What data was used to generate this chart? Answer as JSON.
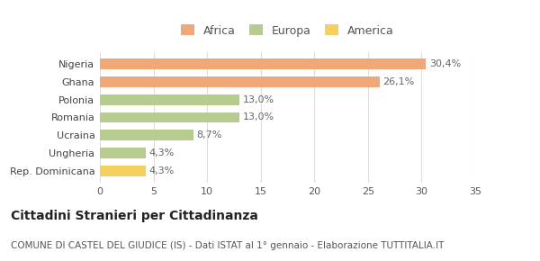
{
  "categories": [
    "Nigeria",
    "Ghana",
    "Polonia",
    "Romania",
    "Ucraina",
    "Ungheria",
    "Rep. Dominicana"
  ],
  "values": [
    30.4,
    26.1,
    13.0,
    13.0,
    8.7,
    4.3,
    4.3
  ],
  "labels": [
    "30,4%",
    "26,1%",
    "13,0%",
    "13,0%",
    "8,7%",
    "4,3%",
    "4,3%"
  ],
  "bar_colors": [
    "#f0a878",
    "#f0a878",
    "#b5cc8e",
    "#b5cc8e",
    "#b5cc8e",
    "#b5cc8e",
    "#f5d060"
  ],
  "legend_items": [
    {
      "label": "Africa",
      "color": "#f0a878"
    },
    {
      "label": "Europa",
      "color": "#b5cc8e"
    },
    {
      "label": "America",
      "color": "#f5d060"
    }
  ],
  "title": "Cittadini Stranieri per Cittadinanza",
  "subtitle": "COMUNE DI CASTEL DEL GIUDICE (IS) - Dati ISTAT al 1° gennaio - Elaborazione TUTTITALIA.IT",
  "xlim": [
    0,
    35
  ],
  "xticks": [
    0,
    5,
    10,
    15,
    20,
    25,
    30,
    35
  ],
  "background_color": "#ffffff",
  "grid_color": "#dddddd",
  "title_fontsize": 10,
  "subtitle_fontsize": 7.5,
  "label_fontsize": 8,
  "tick_fontsize": 8
}
